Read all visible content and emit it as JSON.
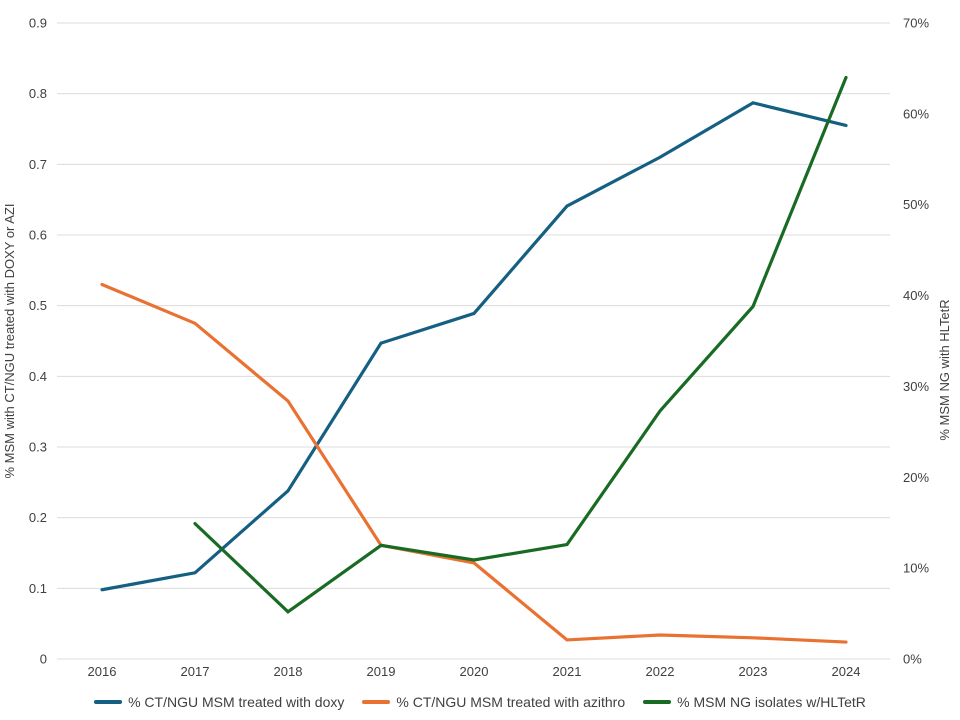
{
  "chart_data": {
    "type": "line",
    "title": "",
    "categories": [
      "2016",
      "2017",
      "2018",
      "2019",
      "2020",
      "2021",
      "2022",
      "2023",
      "2024"
    ],
    "series": [
      {
        "name": "% CT/NGU MSM treated with doxy",
        "axis": "left",
        "color": "#156082",
        "values": [
          0.098,
          0.122,
          0.238,
          0.447,
          0.489,
          0.641,
          0.71,
          0.787,
          0.755
        ]
      },
      {
        "name": "% CT/NGU MSM treated with azithro",
        "axis": "left",
        "color": "#E97132",
        "values": [
          0.53,
          0.475,
          0.365,
          0.161,
          0.136,
          0.027,
          0.034,
          0.03,
          0.024
        ]
      },
      {
        "name": "% MSM NG isolates w/HLTetR",
        "axis": "right",
        "color": "#196B24",
        "values": [
          null,
          14.9,
          5.2,
          12.5,
          10.9,
          12.6,
          27.3,
          38.8,
          64.0
        ]
      }
    ],
    "left_axis": {
      "label": "% MSM with CT/NGU treated with DOXY or AZI",
      "min": 0,
      "max": 0.9,
      "step": 0.1,
      "tick_labels": [
        "0",
        "0.1",
        "0.2",
        "0.3",
        "0.4",
        "0.5",
        "0.6",
        "0.7",
        "0.8",
        "0.9"
      ]
    },
    "right_axis": {
      "label": "% MSM NG with HLTetR",
      "min": 0,
      "max": 70,
      "step": 10,
      "tick_labels": [
        "0%",
        "10%",
        "20%",
        "30%",
        "40%",
        "50%",
        "60%",
        "70%"
      ]
    },
    "grid": true,
    "grid_color": "#DCDCDC",
    "text_color": "#404040",
    "legend_position": "bottom"
  }
}
